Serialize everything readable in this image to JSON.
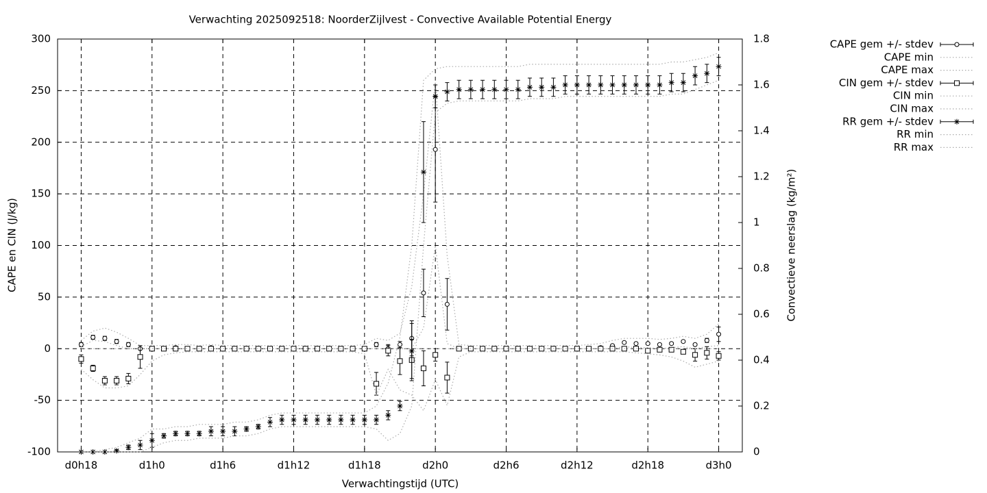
{
  "chart_data": {
    "type": "errorbar",
    "title": "Verwachting 2025092518: NoorderZijlvest - Convective Available Potential Energy",
    "xlabel": "Verwachtingstijd (UTC)",
    "ylabel": "CAPE en CIN (J/kg)",
    "y2label": "Convectieve neerslag (kg/m²)",
    "xlim": [
      16,
      74
    ],
    "xticks": [
      {
        "value": 18,
        "label": "d0h18"
      },
      {
        "value": 24,
        "label": "d1h0"
      },
      {
        "value": 30,
        "label": "d1h6"
      },
      {
        "value": 36,
        "label": "d1h12"
      },
      {
        "value": 42,
        "label": "d1h18"
      },
      {
        "value": 48,
        "label": "d2h0"
      },
      {
        "value": 54,
        "label": "d2h6"
      },
      {
        "value": 60,
        "label": "d2h12"
      },
      {
        "value": 66,
        "label": "d2h18"
      },
      {
        "value": 72,
        "label": "d3h0"
      }
    ],
    "ylim": [
      -100,
      300
    ],
    "yticks": [
      -100,
      -50,
      0,
      50,
      100,
      150,
      200,
      250,
      300
    ],
    "y2lim": [
      0,
      1.8
    ],
    "y2ticks": [
      0,
      0.2,
      0.4,
      0.6,
      0.8,
      1,
      1.2,
      1.4,
      1.6,
      1.8
    ],
    "grid": true,
    "legend": "outside-top-right",
    "x": [
      18,
      19,
      20,
      21,
      22,
      23,
      24,
      25,
      26,
      27,
      28,
      29,
      30,
      31,
      32,
      33,
      34,
      35,
      36,
      37,
      38,
      39,
      40,
      41,
      42,
      43,
      44,
      45,
      46,
      47,
      48,
      49,
      50,
      51,
      52,
      53,
      54,
      55,
      56,
      57,
      58,
      59,
      60,
      61,
      62,
      63,
      64,
      65,
      66,
      67,
      68,
      69,
      70,
      71,
      72
    ],
    "series": [
      {
        "name": "CAPE gem +/- stdev",
        "style": "errorbars",
        "marker": "circle",
        "color": "#000000",
        "values": [
          4,
          11,
          10,
          7,
          4,
          0,
          0,
          0,
          1,
          0,
          0,
          1,
          0,
          0,
          0,
          0,
          0,
          0,
          0,
          0,
          0,
          0,
          0,
          0,
          0,
          4,
          0,
          4,
          10,
          54,
          193,
          43,
          0,
          0,
          0,
          0,
          0,
          0,
          0,
          0,
          0,
          0,
          0,
          0,
          1,
          3,
          6,
          5,
          5,
          4,
          5,
          7,
          4,
          8,
          14
        ],
        "errors": [
          2,
          2,
          2,
          2,
          2,
          1,
          1,
          1,
          1,
          1,
          1,
          1,
          1,
          1,
          1,
          1,
          1,
          1,
          1,
          1,
          1,
          1,
          1,
          1,
          1,
          2,
          4,
          3,
          17,
          23,
          51,
          25,
          1,
          1,
          1,
          1,
          1,
          1,
          1,
          1,
          1,
          1,
          1,
          1,
          1,
          1,
          1,
          1,
          1,
          1,
          1,
          1,
          1,
          2,
          7
        ]
      },
      {
        "name": "CAPE min",
        "style": "dotted",
        "color": "#aaaaaa",
        "values": [
          2,
          8,
          7,
          3,
          0,
          0,
          0,
          0,
          0,
          0,
          0,
          0,
          0,
          0,
          0,
          0,
          0,
          0,
          0,
          0,
          0,
          0,
          0,
          0,
          0,
          0,
          0,
          0,
          0,
          20,
          100,
          5,
          0,
          0,
          0,
          0,
          0,
          0,
          0,
          0,
          0,
          0,
          0,
          0,
          0,
          0,
          2,
          1,
          1,
          0,
          1,
          2,
          0,
          2,
          3
        ]
      },
      {
        "name": "CAPE max",
        "style": "dotted",
        "color": "#aaaaaa",
        "values": [
          8,
          17,
          20,
          16,
          10,
          3,
          3,
          3,
          4,
          4,
          3,
          4,
          3,
          3,
          3,
          3,
          3,
          3,
          3,
          3,
          3,
          3,
          3,
          3,
          4,
          10,
          8,
          15,
          60,
          150,
          260,
          90,
          4,
          3,
          3,
          3,
          3,
          3,
          3,
          3,
          3,
          3,
          3,
          4,
          5,
          8,
          10,
          10,
          10,
          9,
          10,
          12,
          10,
          14,
          24
        ]
      },
      {
        "name": "CIN gem +/- stdev",
        "style": "errorbars",
        "marker": "square",
        "color": "#000000",
        "values": [
          -10,
          -19,
          -31,
          -31,
          -29,
          -8,
          0,
          0,
          0,
          0,
          0,
          0,
          0,
          0,
          0,
          0,
          0,
          0,
          0,
          0,
          0,
          0,
          0,
          0,
          0,
          -34,
          -2,
          -12,
          -11,
          -19,
          -6,
          -28,
          0,
          0,
          0,
          0,
          0,
          0,
          0,
          0,
          0,
          0,
          0,
          0,
          0,
          0,
          0,
          0,
          -2,
          -1,
          -1,
          -3,
          -6,
          -4,
          -7
        ],
        "errors": [
          4,
          3,
          4,
          4,
          5,
          11,
          1,
          1,
          1,
          1,
          1,
          1,
          1,
          1,
          1,
          1,
          1,
          1,
          1,
          1,
          1,
          1,
          1,
          1,
          1,
          11,
          5,
          13,
          20,
          17,
          6,
          15,
          1,
          1,
          1,
          1,
          1,
          1,
          1,
          1,
          1,
          1,
          1,
          1,
          1,
          1,
          1,
          1,
          1,
          1,
          1,
          2,
          6,
          6,
          4
        ]
      },
      {
        "name": "CIN min",
        "style": "dotted",
        "color": "#aaaaaa",
        "values": [
          -20,
          -30,
          -38,
          -38,
          -36,
          -25,
          -12,
          -6,
          -4,
          -3,
          -3,
          -3,
          -3,
          -3,
          -3,
          -3,
          -3,
          -3,
          -3,
          -3,
          -3,
          -3,
          -3,
          -3,
          -5,
          -45,
          -20,
          -40,
          -45,
          -60,
          -30,
          -55,
          -8,
          -3,
          -3,
          -3,
          -3,
          -3,
          -3,
          -3,
          -3,
          -3,
          -3,
          -3,
          -3,
          -3,
          -3,
          -4,
          -5,
          -6,
          -8,
          -12,
          -18,
          -15,
          -12
        ]
      },
      {
        "name": "CIN max",
        "style": "dotted",
        "color": "#aaaaaa",
        "values": [
          0,
          0,
          0,
          0,
          0,
          0,
          0,
          0,
          0,
          0,
          0,
          0,
          0,
          0,
          0,
          0,
          0,
          0,
          0,
          0,
          0,
          0,
          0,
          0,
          0,
          0,
          0,
          0,
          0,
          0,
          0,
          0,
          0,
          0,
          0,
          0,
          0,
          0,
          0,
          0,
          0,
          0,
          0,
          0,
          0,
          0,
          0,
          0,
          0,
          0,
          0,
          0,
          0,
          0,
          0
        ]
      },
      {
        "name": "RR gem +/- stdev",
        "style": "errorbars",
        "marker": "star",
        "color": "#000000",
        "axis": "y2",
        "values": [
          0,
          0,
          0,
          0.005,
          0.02,
          0.03,
          0.05,
          0.07,
          0.08,
          0.08,
          0.08,
          0.09,
          0.09,
          0.09,
          0.1,
          0.11,
          0.13,
          0.14,
          0.14,
          0.14,
          0.14,
          0.14,
          0.14,
          0.14,
          0.14,
          0.14,
          0.16,
          0.2,
          0.44,
          1.22,
          1.55,
          1.57,
          1.58,
          1.58,
          1.58,
          1.58,
          1.58,
          1.58,
          1.59,
          1.59,
          1.59,
          1.6,
          1.6,
          1.6,
          1.6,
          1.6,
          1.6,
          1.6,
          1.6,
          1.6,
          1.61,
          1.61,
          1.64,
          1.65,
          1.68
        ],
        "errors": [
          0,
          0,
          0,
          0.005,
          0.01,
          0.02,
          0.03,
          0.01,
          0.01,
          0.01,
          0.01,
          0.02,
          0.02,
          0.02,
          0.01,
          0.01,
          0.02,
          0.02,
          0.02,
          0.02,
          0.02,
          0.02,
          0.02,
          0.02,
          0.02,
          0.02,
          0.02,
          0.02,
          0.12,
          0.22,
          0.05,
          0.04,
          0.04,
          0.04,
          0.04,
          0.04,
          0.04,
          0.04,
          0.04,
          0.04,
          0.04,
          0.04,
          0.04,
          0.04,
          0.04,
          0.04,
          0.04,
          0.04,
          0.04,
          0.04,
          0.04,
          0.04,
          0.04,
          0.04,
          0.04
        ]
      },
      {
        "name": "RR min",
        "style": "dotted",
        "color": "#aaaaaa",
        "axis": "y2",
        "values": [
          0,
          0,
          0,
          0,
          0,
          0,
          0.02,
          0.04,
          0.05,
          0.05,
          0.06,
          0.06,
          0.06,
          0.07,
          0.07,
          0.08,
          0.1,
          0.11,
          0.11,
          0.11,
          0.11,
          0.11,
          0.11,
          0.11,
          0.11,
          0.1,
          0.05,
          0.08,
          0.2,
          0.9,
          1.48,
          1.52,
          1.53,
          1.53,
          1.53,
          1.53,
          1.53,
          1.53,
          1.54,
          1.54,
          1.54,
          1.55,
          1.55,
          1.55,
          1.55,
          1.55,
          1.55,
          1.55,
          1.55,
          1.55,
          1.56,
          1.56,
          1.58,
          1.6,
          1.62
        ]
      },
      {
        "name": "RR max",
        "style": "dotted",
        "color": "#aaaaaa",
        "axis": "y2",
        "values": [
          0,
          0,
          0.01,
          0.02,
          0.04,
          0.06,
          0.1,
          0.1,
          0.11,
          0.11,
          0.12,
          0.12,
          0.12,
          0.13,
          0.13,
          0.14,
          0.16,
          0.17,
          0.17,
          0.17,
          0.17,
          0.17,
          0.17,
          0.17,
          0.17,
          0.2,
          0.3,
          0.5,
          0.9,
          1.62,
          1.67,
          1.68,
          1.68,
          1.68,
          1.68,
          1.68,
          1.68,
          1.68,
          1.69,
          1.69,
          1.69,
          1.69,
          1.69,
          1.69,
          1.69,
          1.69,
          1.69,
          1.69,
          1.69,
          1.69,
          1.7,
          1.7,
          1.71,
          1.72,
          1.74
        ]
      }
    ]
  }
}
